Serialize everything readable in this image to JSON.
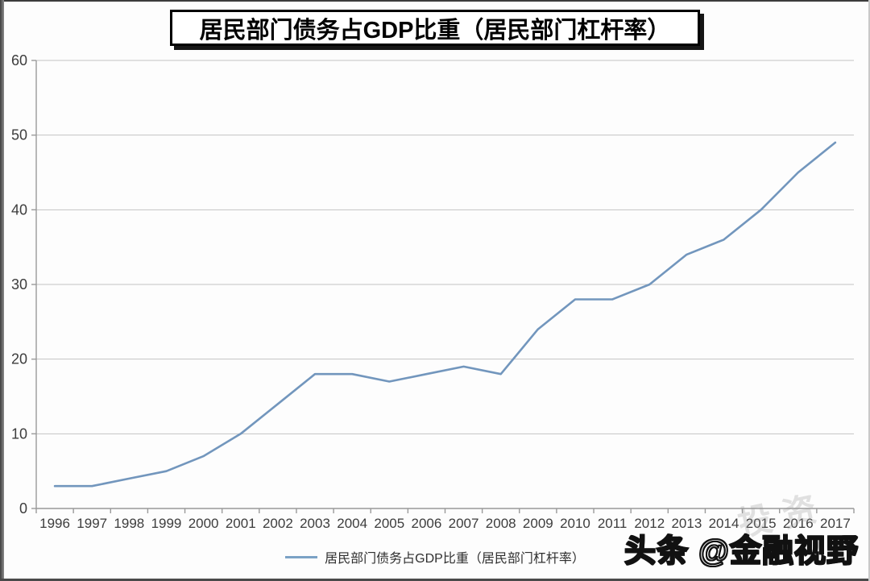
{
  "title": "居民部门债务占GDP比重（居民部门杠杆率）",
  "legend": {
    "label": "居民部门债务占GDP比重（居民部门杠杆率）"
  },
  "watermark": {
    "text": "头条 @金融视野",
    "ghost": "投资"
  },
  "colors": {
    "line": "#7296BD",
    "gridline": "#c3c3c3",
    "axis": "#9a9a9a",
    "tick_label": "#3d3d3d"
  },
  "chart_data": {
    "type": "line",
    "title": "居民部门债务占GDP比重（居民部门杠杆率）",
    "series_name": "居民部门债务占GDP比重（居民部门杠杆率）",
    "categories": [
      "1996",
      "1997",
      "1998",
      "1999",
      "2000",
      "2001",
      "2002",
      "2003",
      "2004",
      "2005",
      "2006",
      "2007",
      "2008",
      "2009",
      "2010",
      "2011",
      "2012",
      "2013",
      "2014",
      "2015",
      "2016",
      "2017"
    ],
    "values": [
      3,
      3,
      4,
      5,
      7,
      10,
      14,
      18,
      18,
      17,
      18,
      19,
      18,
      24,
      28,
      28,
      30,
      34,
      36,
      40,
      45,
      49
    ],
    "xlabel": "",
    "ylabel": "",
    "ylim": [
      0,
      60
    ],
    "y_ticks": [
      0,
      10,
      20,
      30,
      40,
      50,
      60
    ],
    "grid": true,
    "legend_position": "bottom"
  }
}
